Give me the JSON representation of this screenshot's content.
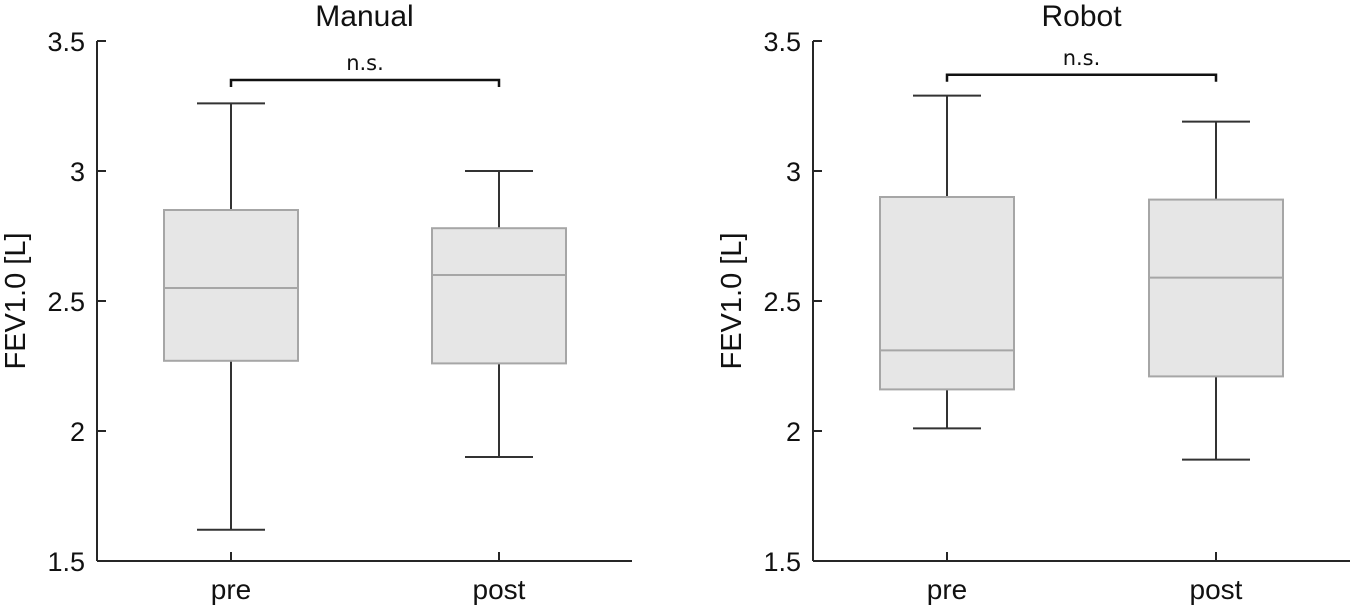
{
  "chart_data": [
    {
      "type": "box",
      "title": "Manual",
      "xlabel": "",
      "ylabel": "FEV1.0 [L]",
      "ylim": [
        1.5,
        3.5
      ],
      "yticks": [
        "1.5",
        "2",
        "2.5",
        "3",
        "3.5"
      ],
      "categories": [
        "pre",
        "post"
      ],
      "boxes": [
        {
          "min": 1.62,
          "q1": 2.27,
          "median": 2.55,
          "q3": 2.85,
          "max": 3.26
        },
        {
          "min": 1.9,
          "q1": 2.26,
          "median": 2.6,
          "q3": 2.78,
          "max": 3.0
        }
      ],
      "significance": {
        "label": "n.s.",
        "between": [
          "pre",
          "post"
        ],
        "y": 3.35
      },
      "box_color": "#e6e6e6",
      "box_edge_color": "#a6a6a6",
      "whisker_color": "#333333"
    },
    {
      "type": "box",
      "title": "Robot",
      "xlabel": "",
      "ylabel": "FEV1.0 [L]",
      "ylim": [
        1.5,
        3.5
      ],
      "yticks": [
        "1.5",
        "2",
        "2.5",
        "3",
        "3.5"
      ],
      "categories": [
        "pre",
        "post"
      ],
      "boxes": [
        {
          "min": 2.01,
          "q1": 2.16,
          "median": 2.31,
          "q3": 2.9,
          "max": 3.29
        },
        {
          "min": 1.89,
          "q1": 2.21,
          "median": 2.59,
          "q3": 2.89,
          "max": 3.19
        }
      ],
      "significance": {
        "label": "n.s.",
        "between": [
          "pre",
          "post"
        ],
        "y": 3.37
      },
      "box_color": "#e6e6e6",
      "box_edge_color": "#a6a6a6",
      "whisker_color": "#333333"
    }
  ]
}
